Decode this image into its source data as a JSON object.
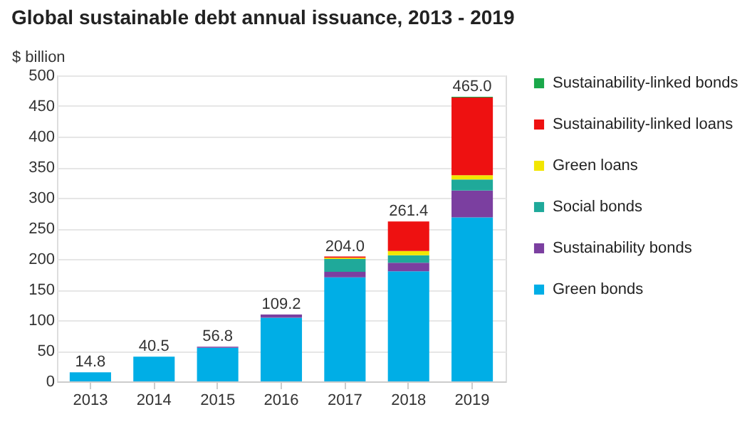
{
  "chart_data": {
    "type": "bar",
    "stacked": true,
    "title": "Global sustainable debt annual issuance, 2013 - 2019",
    "ylabel": "$ billion",
    "categories": [
      "2013",
      "2014",
      "2015",
      "2016",
      "2017",
      "2018",
      "2019"
    ],
    "series": [
      {
        "name": "Green bonds",
        "color": "#00aee6",
        "values": [
          14.8,
          40.5,
          55,
          104,
          170,
          180,
          268
        ]
      },
      {
        "name": "Sustainability bonds",
        "color": "#7b3fa0",
        "values": [
          null,
          null,
          1.8,
          5.2,
          9,
          14,
          44
        ]
      },
      {
        "name": "Social bonds",
        "color": "#1fa99a",
        "values": [
          null,
          null,
          null,
          null,
          21,
          12,
          18
        ]
      },
      {
        "name": "Green loans",
        "color": "#f2e600",
        "values": [
          null,
          null,
          null,
          null,
          2,
          7,
          7
        ]
      },
      {
        "name": "Sustainability-linked loans",
        "color": "#ee1111",
        "values": [
          null,
          null,
          null,
          null,
          2,
          48.4,
          127
        ]
      },
      {
        "name": "Sustainability-linked bonds",
        "color": "#1aa84a",
        "values": [
          null,
          null,
          null,
          null,
          null,
          null,
          1
        ]
      }
    ],
    "totals": [
      "14.8",
      "40.5",
      "56.8",
      "109.2",
      "204.0",
      "261.4",
      "465.0"
    ],
    "ylim": [
      0,
      500
    ],
    "yticks": [
      0,
      50,
      100,
      150,
      200,
      250,
      300,
      350,
      400,
      450,
      500
    ],
    "grid": "y",
    "legend": "right"
  }
}
